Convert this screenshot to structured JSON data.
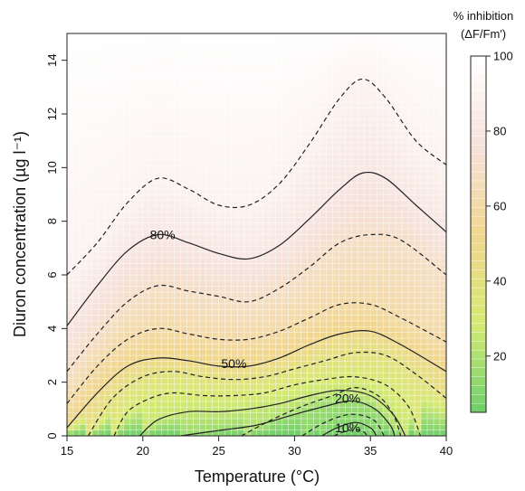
{
  "chart_data": {
    "type": "heatmap",
    "xlabel": "Temperature (°C)",
    "ylabel": "Diuron concentration (µg l⁻¹)",
    "xlim": [
      15,
      40
    ],
    "ylim": [
      0,
      15
    ],
    "x_ticks": [
      "15",
      "20",
      "25",
      "30",
      "35",
      "40"
    ],
    "y_ticks": [
      "0",
      "2",
      "4",
      "6",
      "8",
      "10",
      "12",
      "14"
    ],
    "colorbar": {
      "title_line1": "% inhibition",
      "title_line2": "(ΔF/Fm′)",
      "ticks": [
        "20",
        "40",
        "60",
        "80",
        "100"
      ],
      "range": [
        5,
        100
      ],
      "colors": [
        "#6dcf6b",
        "#d6ea73",
        "#f1d68e",
        "#f6e2dc",
        "#ffffff"
      ]
    },
    "contours": [
      {
        "level": 90,
        "style": "dashed",
        "points": [
          [
            15,
            6.0
          ],
          [
            17,
            7.2
          ],
          [
            19,
            8.7
          ],
          [
            21,
            9.6
          ],
          [
            23,
            9.2
          ],
          [
            25,
            8.6
          ],
          [
            27,
            8.6
          ],
          [
            29,
            9.4
          ],
          [
            31,
            10.9
          ],
          [
            33,
            12.6
          ],
          [
            34.5,
            13.3
          ],
          [
            36,
            12.6
          ],
          [
            38,
            11.0
          ],
          [
            40,
            10.1
          ]
        ]
      },
      {
        "level": 80,
        "style": "solid",
        "label": "80%",
        "points": [
          [
            15,
            4.1
          ],
          [
            17,
            5.6
          ],
          [
            19,
            6.9
          ],
          [
            21,
            7.5
          ],
          [
            23,
            7.2
          ],
          [
            25,
            6.8
          ],
          [
            27,
            6.6
          ],
          [
            29,
            7.1
          ],
          [
            31,
            8.1
          ],
          [
            33,
            9.2
          ],
          [
            34.5,
            9.8
          ],
          [
            36,
            9.6
          ],
          [
            38,
            8.6
          ],
          [
            40,
            7.6
          ]
        ]
      },
      {
        "level": 70,
        "style": "dashed",
        "points": [
          [
            15,
            2.4
          ],
          [
            17,
            3.8
          ],
          [
            19,
            5.0
          ],
          [
            21,
            5.6
          ],
          [
            23,
            5.4
          ],
          [
            25,
            5.2
          ],
          [
            27,
            5.0
          ],
          [
            29,
            5.5
          ],
          [
            31,
            6.3
          ],
          [
            33,
            7.2
          ],
          [
            35,
            7.5
          ],
          [
            37,
            7.3
          ],
          [
            40,
            6.0
          ]
        ]
      },
      {
        "level": 60,
        "style": "dashed",
        "points": [
          [
            15,
            1.2
          ],
          [
            17,
            2.6
          ],
          [
            19,
            3.6
          ],
          [
            21,
            4.0
          ],
          [
            23,
            3.8
          ],
          [
            25,
            3.6
          ],
          [
            27,
            3.6
          ],
          [
            29,
            3.9
          ],
          [
            31,
            4.4
          ],
          [
            33,
            4.9
          ],
          [
            35,
            4.9
          ],
          [
            37,
            4.4
          ],
          [
            40,
            3.5
          ]
        ]
      },
      {
        "level": 50,
        "style": "solid",
        "label": "50%",
        "points": [
          [
            15,
            0.3
          ],
          [
            17,
            1.6
          ],
          [
            19,
            2.6
          ],
          [
            21,
            2.9
          ],
          [
            23,
            2.8
          ],
          [
            25,
            2.6
          ],
          [
            27,
            2.6
          ],
          [
            29,
            2.9
          ],
          [
            31,
            3.4
          ],
          [
            33,
            3.8
          ],
          [
            35,
            3.9
          ],
          [
            37,
            3.4
          ],
          [
            40,
            2.4
          ]
        ]
      },
      {
        "level": 40,
        "style": "dashed",
        "points": [
          [
            16.4,
            0.0
          ],
          [
            18,
            1.4
          ],
          [
            20,
            2.2
          ],
          [
            22,
            2.4
          ],
          [
            24,
            2.2
          ],
          [
            26,
            2.1
          ],
          [
            28,
            2.2
          ],
          [
            30,
            2.5
          ],
          [
            32,
            2.8
          ],
          [
            34,
            3.1
          ],
          [
            36,
            3.0
          ],
          [
            38,
            2.3
          ],
          [
            40,
            1.4
          ]
        ]
      },
      {
        "level": 30,
        "style": "dashed",
        "points": [
          [
            18.1,
            0.0
          ],
          [
            19,
            0.9
          ],
          [
            20.5,
            1.4
          ],
          [
            22,
            1.6
          ],
          [
            24,
            1.5
          ],
          [
            26,
            1.5
          ],
          [
            28,
            1.6
          ],
          [
            30,
            1.9
          ],
          [
            32,
            2.1
          ],
          [
            34,
            2.2
          ],
          [
            36,
            1.9
          ],
          [
            37.5,
            1.1
          ],
          [
            38.3,
            0.0
          ]
        ]
      },
      {
        "level": 25,
        "style": "solid",
        "points": [
          [
            19.8,
            0.0
          ],
          [
            21,
            0.6
          ],
          [
            23,
            0.9
          ],
          [
            25,
            0.9
          ],
          [
            27,
            1.0
          ],
          [
            29,
            1.2
          ],
          [
            31,
            1.5
          ],
          [
            33,
            1.7
          ],
          [
            35,
            1.5
          ],
          [
            36.5,
            0.8
          ],
          [
            37.3,
            0.0
          ]
        ]
      },
      {
        "level": 20,
        "style": "dashed",
        "label": "20%",
        "points": [
          [
            26.5,
            0.0
          ],
          [
            28.5,
            0.6
          ],
          [
            30.5,
            1.1
          ],
          [
            32.5,
            1.5
          ],
          [
            34,
            1.8
          ],
          [
            35.5,
            1.5
          ],
          [
            36.5,
            0.8
          ],
          [
            37.0,
            0.0
          ]
        ]
      },
      {
        "level": 15,
        "style": "solid",
        "points": [
          [
            22.5,
            0.0
          ],
          [
            25,
            0.2
          ],
          [
            27.5,
            0.4
          ],
          [
            30,
            0.8
          ],
          [
            32,
            1.1
          ],
          [
            33.8,
            1.3
          ],
          [
            35.3,
            1.0
          ],
          [
            36.3,
            0.4
          ],
          [
            36.6,
            0.0
          ]
        ]
      },
      {
        "level": 12,
        "style": "dashed",
        "points": [
          [
            30.5,
            0.0
          ],
          [
            32,
            0.5
          ],
          [
            33.7,
            0.8
          ],
          [
            35.2,
            0.6
          ],
          [
            35.9,
            0.0
          ]
        ]
      },
      {
        "level": 10,
        "style": "solid",
        "label": "10%",
        "points": [
          [
            31.8,
            0.0
          ],
          [
            32.8,
            0.3
          ],
          [
            34,
            0.5
          ],
          [
            35.0,
            0.3
          ],
          [
            35.4,
            0.0
          ]
        ]
      },
      {
        "level": 8,
        "style": "dashed",
        "points": [
          [
            32.6,
            0.0
          ],
          [
            33.5,
            0.2
          ],
          [
            34.4,
            0.2
          ],
          [
            34.8,
            0.0
          ]
        ]
      }
    ],
    "contour_labels": [
      {
        "text": "80%",
        "x": 21.3,
        "y": 7.5
      },
      {
        "text": "50%",
        "x": 26.0,
        "y": 2.7
      },
      {
        "text": "20%",
        "x": 33.5,
        "y": 1.4
      },
      {
        "text": "10%",
        "x": 33.5,
        "y": 0.3
      }
    ]
  }
}
